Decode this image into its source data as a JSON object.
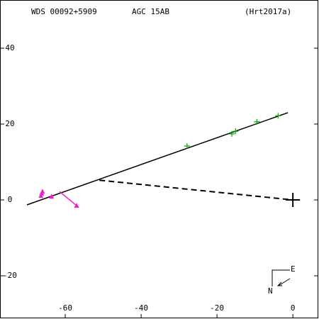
{
  "chart_data": {
    "type": "scatter",
    "title": "WDS 00092+5909",
    "subtitle": "AGC  15AB",
    "reference": "(Hrt2017a)",
    "compass": {
      "east": "E",
      "north": "N"
    },
    "xlim": [
      -77.2,
      6.7
    ],
    "ylim": [
      -31.2,
      52.7
    ],
    "xticks": [
      -60,
      -40,
      -20,
      0
    ],
    "yticks": [
      -20,
      0,
      20,
      40
    ],
    "series": [
      {
        "color": "#000000",
        "style": "solid",
        "x": [
          -70.1,
          -1.3
        ],
        "values": [
          -1.3,
          23.0
        ]
      },
      {
        "color": "#000000",
        "style": "dashed",
        "x": [
          -51.0,
          0
        ],
        "values": [
          5.2,
          0
        ]
      },
      {
        "color": "#00aa00",
        "style": "plus",
        "x": [
          -27.9,
          -16.1,
          -15.1,
          -9.5,
          -3.9
        ],
        "values": [
          14.2,
          17.4,
          18.1,
          20.6,
          22.2
        ]
      },
      {
        "color": "#ee22cc",
        "style": "solid",
        "x": [
          -61.5,
          -57.0
        ],
        "values": [
          2.2,
          -1.5
        ]
      },
      {
        "color": "#ee22cc",
        "style": "triangle",
        "x": [
          -66.0,
          -66.2,
          -66.4,
          -63.6,
          -57.0
        ],
        "values": [
          2.2,
          1.7,
          1.1,
          0.9,
          -1.5
        ]
      },
      {
        "color": "#000000",
        "style": "big-plus",
        "x": [
          0
        ],
        "values": [
          0
        ]
      }
    ]
  }
}
